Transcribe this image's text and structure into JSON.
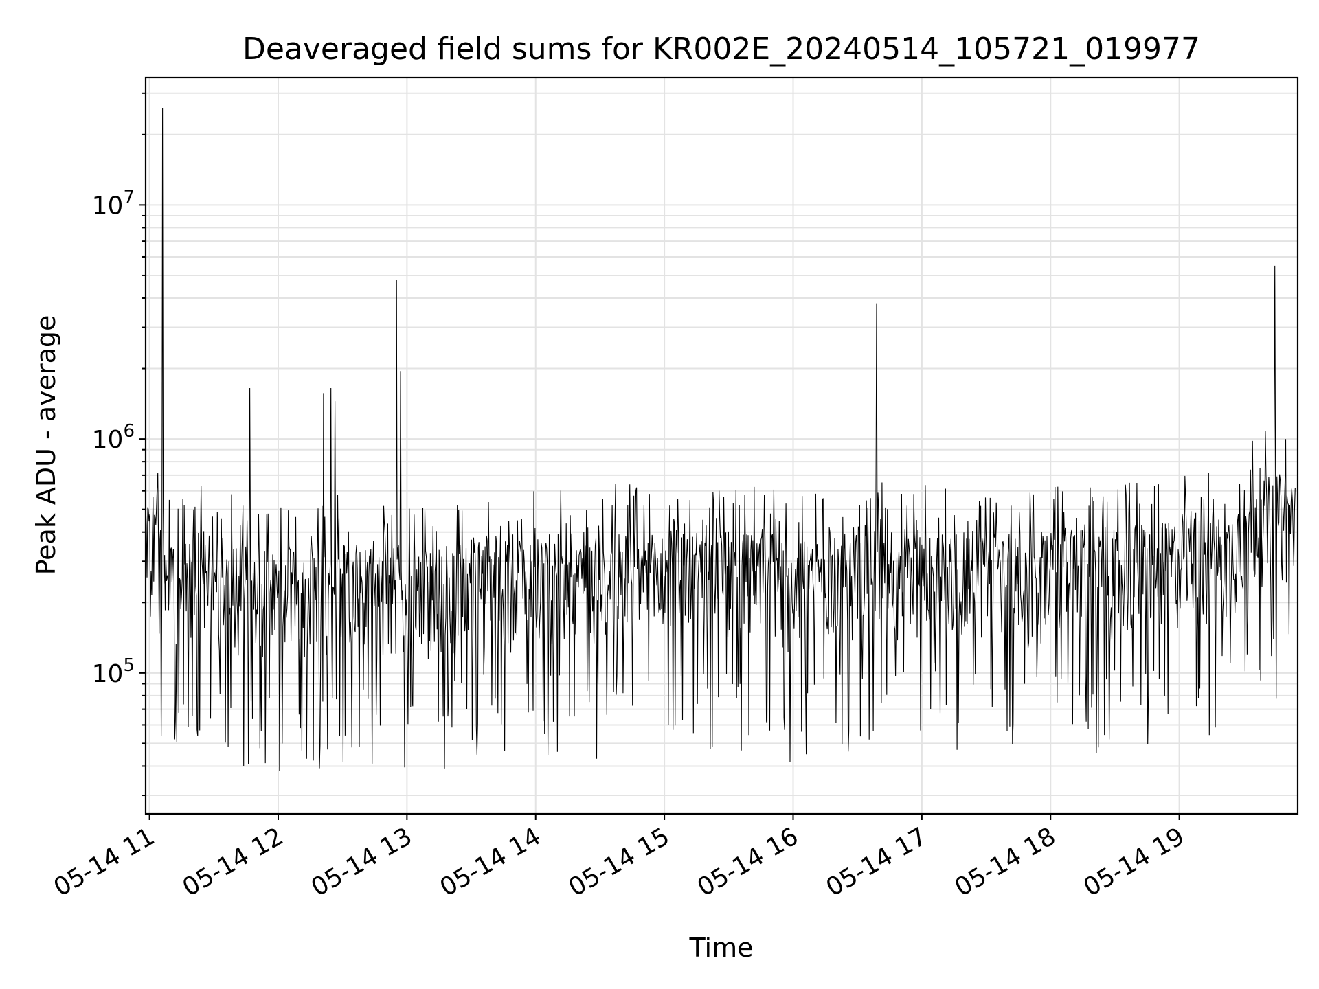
{
  "chart_data": {
    "type": "line",
    "title": "Deaveraged field sums for KR002E_20240514_105721_019977",
    "xlabel": "Time",
    "ylabel": "Peak ADU - average",
    "yscale": "log",
    "ylim": [
      25000,
      35000000
    ],
    "xlim_hours": [
      10.97,
      19.92
    ],
    "x_ticks": [
      {
        "hour": 11,
        "label": "05-14 11"
      },
      {
        "hour": 12,
        "label": "05-14 12"
      },
      {
        "hour": 13,
        "label": "05-14 13"
      },
      {
        "hour": 14,
        "label": "05-14 14"
      },
      {
        "hour": 15,
        "label": "05-14 15"
      },
      {
        "hour": 16,
        "label": "05-14 16"
      },
      {
        "hour": 17,
        "label": "05-14 17"
      },
      {
        "hour": 18,
        "label": "05-14 18"
      },
      {
        "hour": 19,
        "label": "05-14 19"
      }
    ],
    "y_ticks": [
      {
        "value": 100000,
        "base": "10",
        "exp": "5"
      },
      {
        "value": 1000000,
        "base": "10",
        "exp": "6"
      },
      {
        "value": 10000000,
        "base": "10",
        "exp": "7"
      }
    ],
    "grid": true,
    "line_color": "#000000",
    "series": [
      {
        "x": [
          11.0,
          11.1,
          11.2,
          11.3,
          11.4,
          11.5,
          11.6,
          11.7,
          11.8,
          11.9,
          12.0,
          12.1,
          12.2,
          12.3,
          12.4,
          12.5,
          12.6,
          12.7,
          12.8,
          12.9,
          13.0,
          13.1,
          13.2,
          13.3,
          13.4,
          13.5,
          13.6,
          13.7,
          13.8,
          13.9,
          14.0,
          14.1,
          14.2,
          14.3,
          14.4,
          14.5,
          14.6,
          14.7,
          14.8,
          14.9,
          15.0,
          15.1,
          15.2,
          15.3,
          15.4,
          15.5,
          15.6,
          15.7,
          15.8,
          15.9,
          16.0,
          16.1,
          16.2,
          16.3,
          16.4,
          16.5,
          16.6,
          16.7,
          16.8,
          16.9,
          17.0,
          17.1,
          17.2,
          17.3,
          17.4,
          17.5,
          17.6,
          17.7,
          17.8,
          17.9,
          18.0,
          18.1,
          18.2,
          18.3,
          18.4,
          18.5,
          18.6,
          18.7,
          18.8,
          18.9,
          19.0,
          19.1,
          19.2,
          19.3,
          19.4,
          19.5,
          19.6,
          19.7,
          19.8,
          19.9
        ],
        "y": [
          300000,
          250000,
          230000,
          220000,
          240000,
          230000,
          220000,
          210000,
          200000,
          180000,
          190000,
          200000,
          210000,
          200000,
          220000,
          210000,
          200000,
          210000,
          200000,
          210000,
          200000,
          190000,
          210000,
          210000,
          220000,
          220000,
          230000,
          220000,
          220000,
          230000,
          240000,
          230000,
          240000,
          250000,
          240000,
          230000,
          240000,
          250000,
          240000,
          230000,
          240000,
          250000,
          240000,
          230000,
          250000,
          240000,
          230000,
          240000,
          230000,
          220000,
          220000,
          230000,
          240000,
          250000,
          240000,
          250000,
          260000,
          250000,
          250000,
          240000,
          250000,
          260000,
          250000,
          240000,
          250000,
          240000,
          250000,
          240000,
          230000,
          230000,
          240000,
          250000,
          240000,
          240000,
          250000,
          240000,
          250000,
          260000,
          250000,
          260000,
          270000,
          280000,
          270000,
          280000,
          290000,
          380000,
          420000,
          410000,
          420000,
          430000
        ]
      }
    ],
    "spikes": [
      {
        "hour": 11.1,
        "value": 26000000
      },
      {
        "hour": 11.78,
        "value": 1650000
      },
      {
        "hour": 12.35,
        "value": 1570000
      },
      {
        "hour": 12.41,
        "value": 1650000
      },
      {
        "hour": 12.44,
        "value": 1450000
      },
      {
        "hour": 12.92,
        "value": 4800000
      },
      {
        "hour": 12.95,
        "value": 1950000
      },
      {
        "hour": 16.65,
        "value": 3800000
      },
      {
        "hour": 19.74,
        "value": 5500000
      }
    ]
  }
}
